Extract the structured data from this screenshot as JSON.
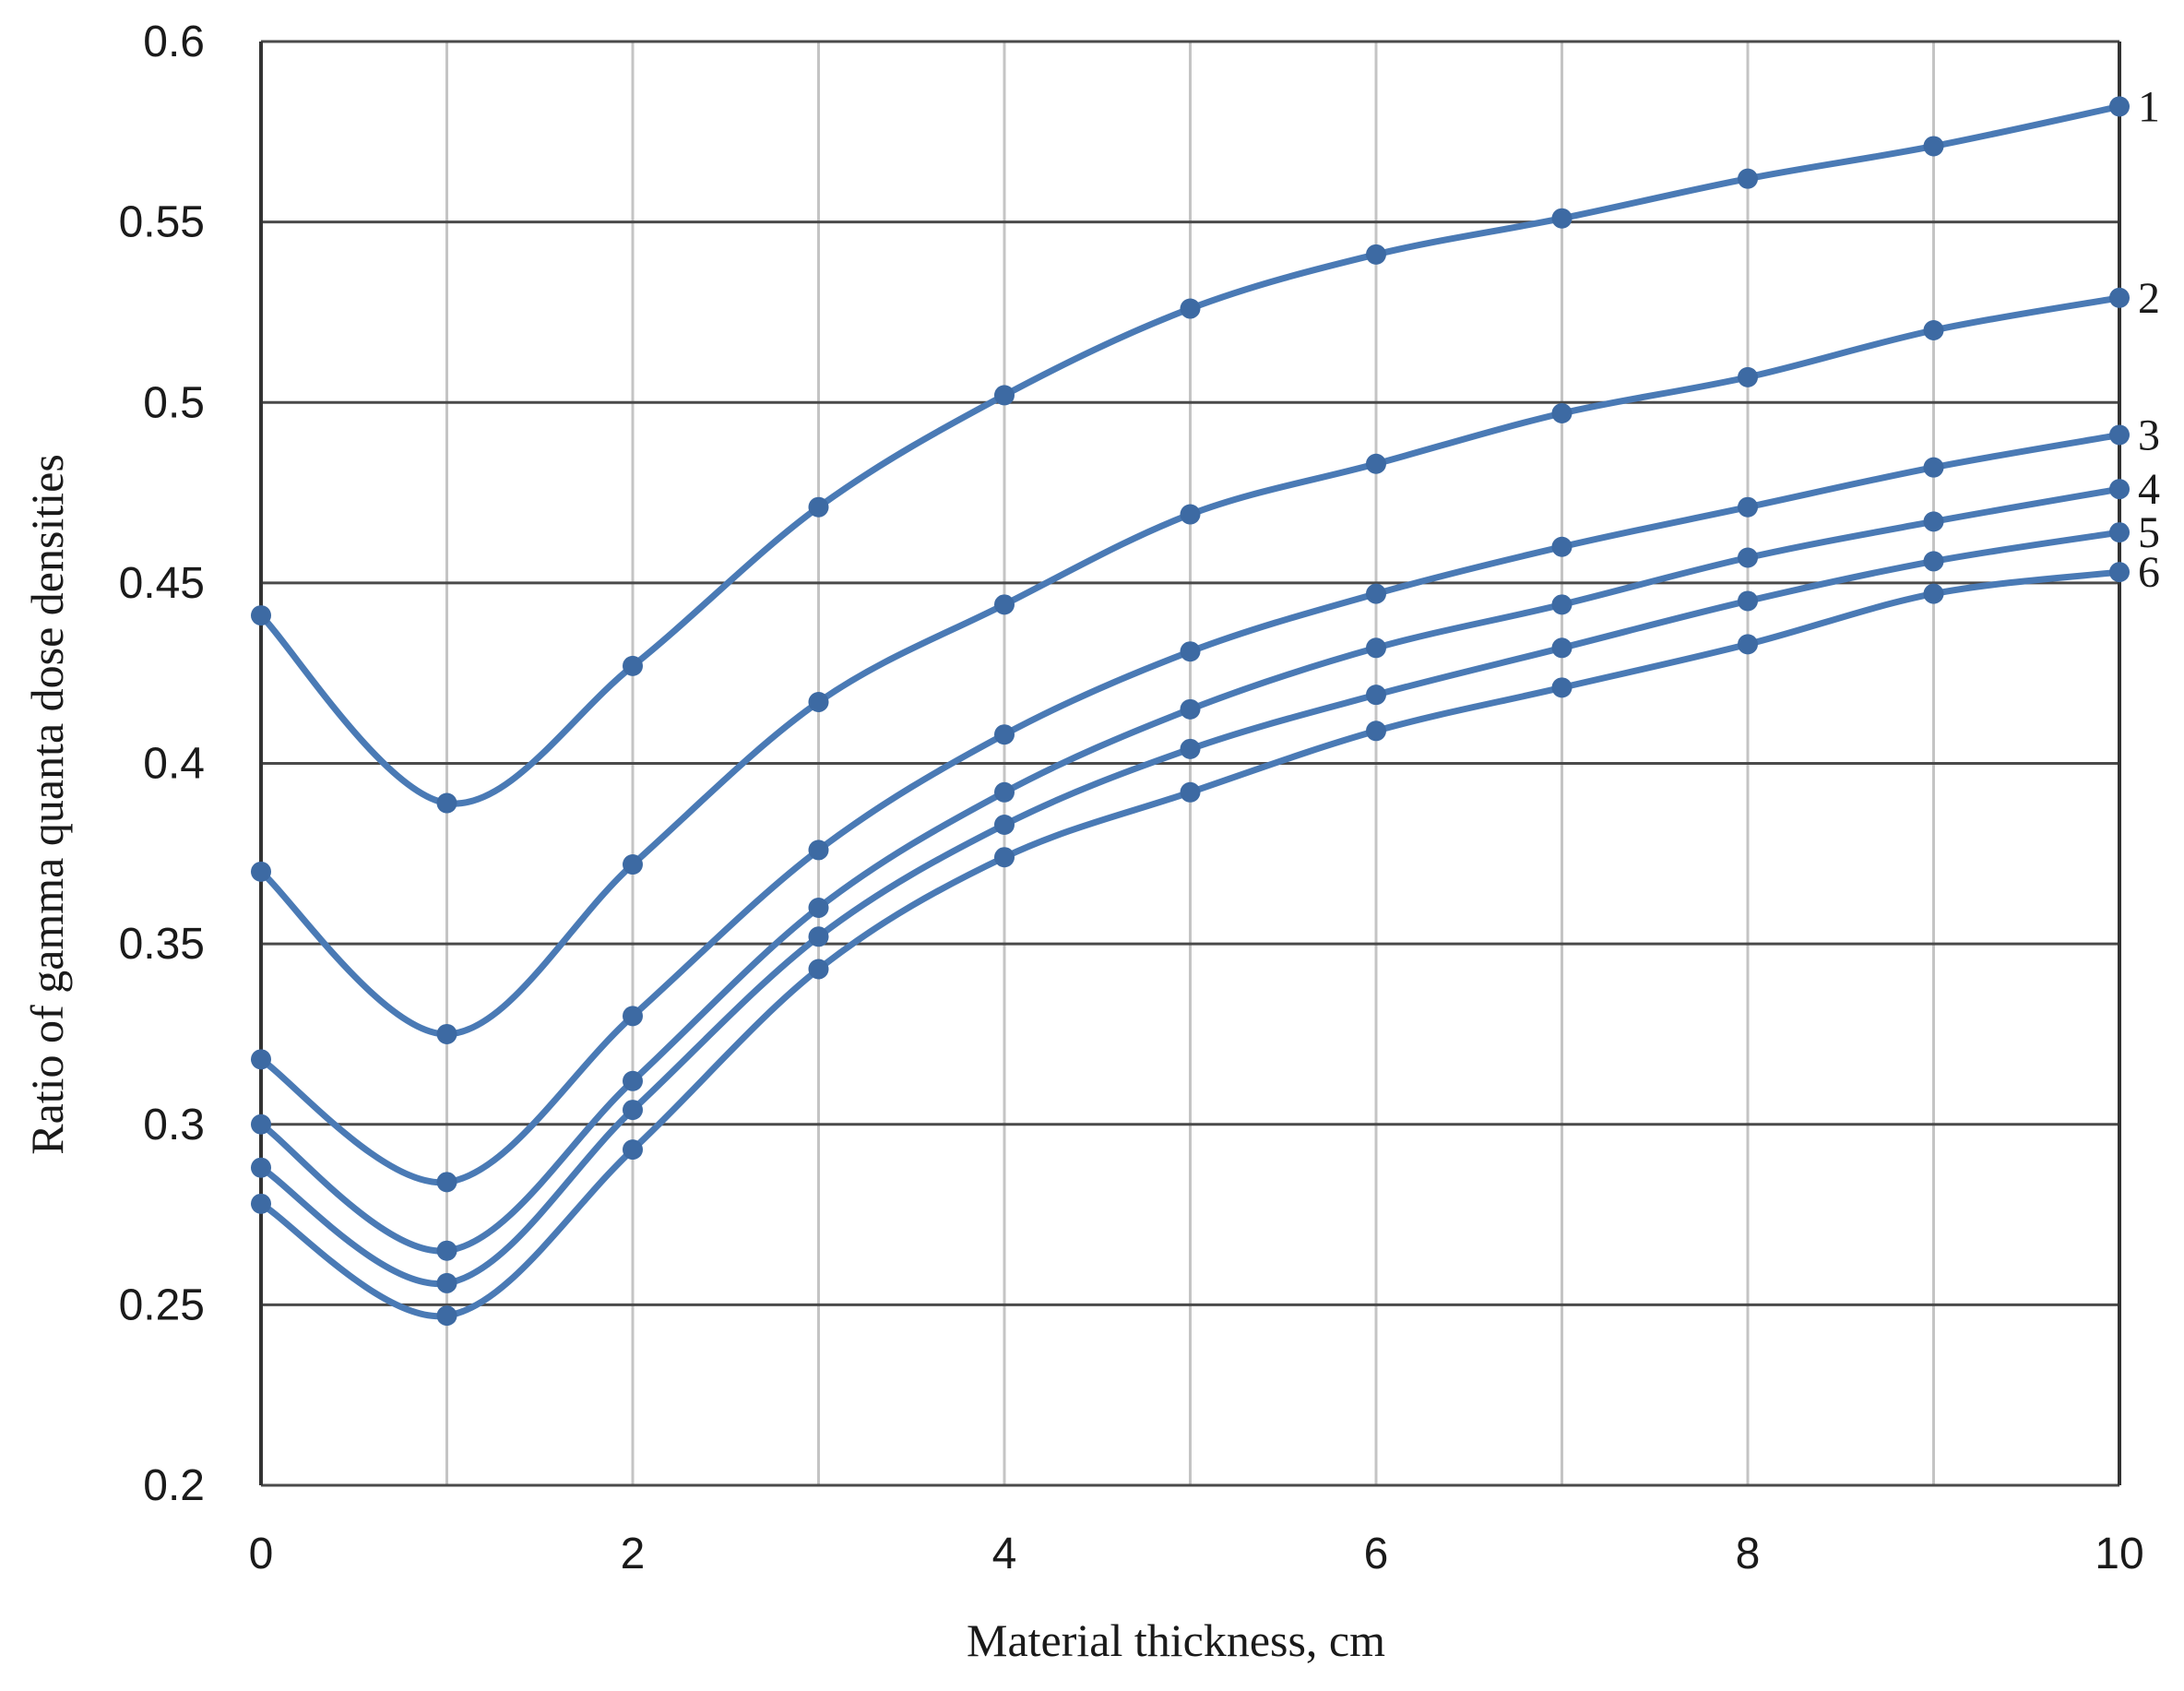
{
  "chart_data": {
    "type": "line",
    "title": "",
    "xlabel": "Material thickness, cm",
    "ylabel": "Ratio of gamma quanta dose densities",
    "xlim": [
      0,
      10
    ],
    "ylim": [
      0.2,
      0.6
    ],
    "x_ticks": [
      "0",
      "2",
      "4",
      "6",
      "8",
      "10"
    ],
    "x_tick_values": [
      0,
      2,
      4,
      6,
      8,
      10
    ],
    "x_gridlines": [
      0,
      1,
      2,
      3,
      4,
      5,
      6,
      7,
      8,
      9,
      10
    ],
    "y_ticks": [
      "0.2",
      "0.25",
      "0.3",
      "0.35",
      "0.4",
      "0.45",
      "0.5",
      "0.55",
      "0.6"
    ],
    "y_tick_values": [
      0.2,
      0.25,
      0.3,
      0.35,
      0.4,
      0.45,
      0.5,
      0.55,
      0.6
    ],
    "grid": true,
    "legend": "none",
    "line_color": "#4a7ab5",
    "marker_color": "#3d6aa3",
    "x": [
      0,
      1,
      2,
      3,
      4,
      5,
      6,
      7,
      8,
      9,
      10
    ],
    "series": [
      {
        "name": "1",
        "values": [
          0.441,
          0.389,
          0.427,
          0.471,
          0.502,
          0.526,
          0.541,
          0.551,
          0.562,
          0.571,
          0.582
        ]
      },
      {
        "name": "2",
        "values": [
          0.37,
          0.325,
          0.372,
          0.417,
          0.444,
          0.469,
          0.483,
          0.497,
          0.507,
          0.52,
          0.529
        ]
      },
      {
        "name": "3",
        "values": [
          0.318,
          0.284,
          0.33,
          0.376,
          0.408,
          0.431,
          0.447,
          0.46,
          0.471,
          0.482,
          0.491
        ]
      },
      {
        "name": "4",
        "values": [
          0.3,
          0.265,
          0.312,
          0.36,
          0.392,
          0.415,
          0.432,
          0.444,
          0.457,
          0.467,
          0.476
        ]
      },
      {
        "name": "5",
        "values": [
          0.288,
          0.256,
          0.304,
          0.352,
          0.383,
          0.404,
          0.419,
          0.432,
          0.445,
          0.456,
          0.464
        ]
      },
      {
        "name": "6",
        "values": [
          0.278,
          0.247,
          0.293,
          0.343,
          0.374,
          0.392,
          0.409,
          0.421,
          0.433,
          0.447,
          0.453
        ]
      }
    ]
  }
}
